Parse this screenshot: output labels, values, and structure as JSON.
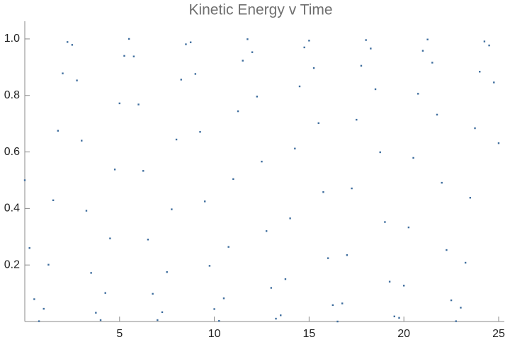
{
  "chart_data": {
    "type": "scatter",
    "title": "Kinetic Energy v Time",
    "x": [
      0,
      0.25,
      0.5,
      0.75,
      1,
      1.25,
      1.5,
      1.75,
      2,
      2.25,
      2.5,
      2.75,
      3,
      3.25,
      3.5,
      3.75,
      4,
      4.25,
      4.5,
      4.75,
      5,
      5.25,
      5.5,
      5.75,
      6,
      6.25,
      6.5,
      6.75,
      7,
      7.25,
      7.5,
      7.75,
      8,
      8.25,
      8.5,
      8.75,
      9,
      9.25,
      9.5,
      9.75,
      10,
      10.25,
      10.5,
      10.75,
      11,
      11.25,
      11.5,
      11.75,
      12,
      12.25,
      12.5,
      12.75,
      13,
      13.25,
      13.5,
      13.75,
      14,
      14.25,
      14.5,
      14.75,
      15,
      15.25,
      15.5,
      15.75,
      16,
      16.25,
      16.5,
      16.75,
      17,
      17.25,
      17.5,
      17.75,
      18,
      18.25,
      18.5,
      18.75,
      19,
      19.25,
      19.5,
      19.75,
      20,
      20.25,
      20.5,
      20.75,
      21,
      21.25,
      21.5,
      21.75,
      22,
      22.25,
      22.5,
      22.75,
      23,
      23.25,
      23.5,
      23.75,
      24,
      24.25,
      24.5,
      24.75,
      25
    ],
    "series": [
      {
        "color": "#3f6e9e",
        "values": [
          0.5,
          0.26,
          0.079,
          0.001,
          0.045,
          0.201,
          0.429,
          0.675,
          0.878,
          0.989,
          0.979,
          0.853,
          0.64,
          0.392,
          0.172,
          0.031,
          0.005,
          0.101,
          0.294,
          0.538,
          0.772,
          0.94,
          1.0,
          0.938,
          0.768,
          0.533,
          0.29,
          0.098,
          0.005,
          0.033,
          0.175,
          0.397,
          0.644,
          0.856,
          0.981,
          0.988,
          0.876,
          0.671,
          0.425,
          0.197,
          0.044,
          0.002,
          0.082,
          0.264,
          0.504,
          0.744,
          0.923,
          0.999,
          0.953,
          0.796,
          0.566,
          0.32,
          0.119,
          0.01,
          0.022,
          0.15,
          0.365,
          0.612,
          0.832,
          0.97,
          0.994,
          0.897,
          0.702,
          0.458,
          0.224,
          0.058,
          0.0,
          0.064,
          0.235,
          0.471,
          0.714,
          0.905,
          0.996,
          0.966,
          0.822,
          0.599,
          0.352,
          0.141,
          0.018,
          0.013,
          0.127,
          0.333,
          0.579,
          0.806,
          0.958,
          0.998,
          0.916,
          0.732,
          0.491,
          0.253,
          0.075,
          0.001,
          0.049,
          0.208,
          0.438,
          0.684,
          0.884,
          0.991,
          0.977,
          0.846,
          0.631
        ]
      }
    ],
    "xlim": [
      0,
      25.3
    ],
    "ylim": [
      0,
      1.05
    ],
    "xticks": [
      5,
      10,
      15,
      20,
      25
    ],
    "yticks": [
      0.2,
      0.4,
      0.6,
      0.8,
      {
        "value": 1.0,
        "label": "1.0"
      }
    ]
  }
}
